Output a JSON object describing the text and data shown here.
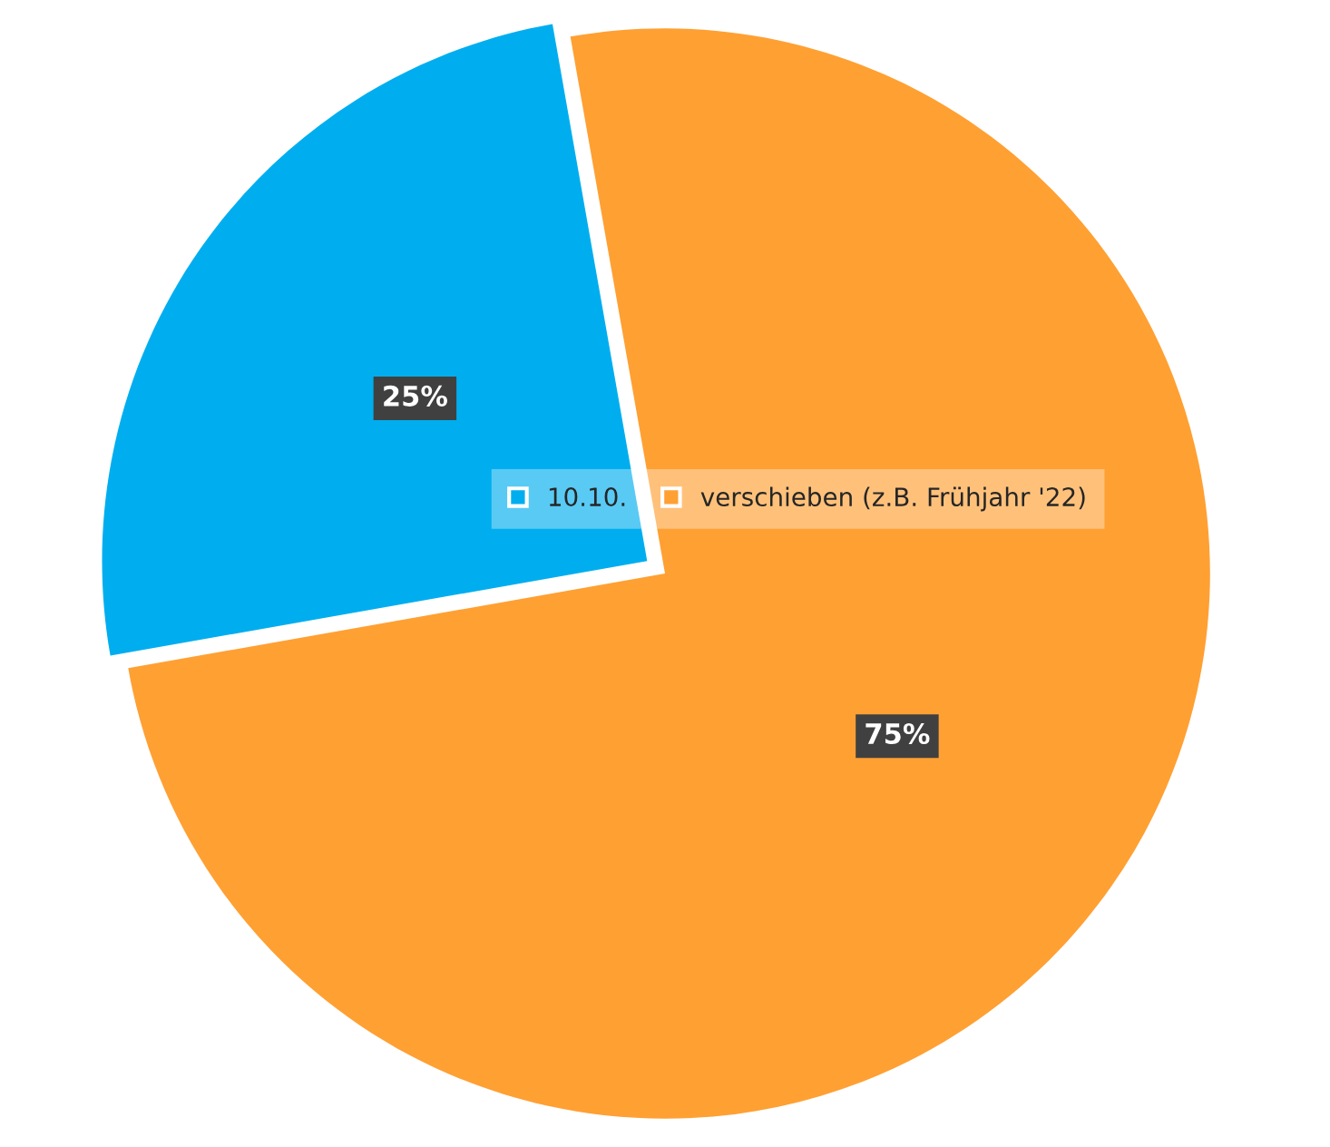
{
  "chart_data": {
    "type": "pie",
    "categories": [
      "10.10.",
      "verschieben (z.B. Frühjahr '22)"
    ],
    "values": [
      25,
      75
    ],
    "colors": [
      "#00aeef",
      "#ffa033"
    ],
    "value_labels": [
      "25%",
      "75%"
    ],
    "legend": "center"
  }
}
